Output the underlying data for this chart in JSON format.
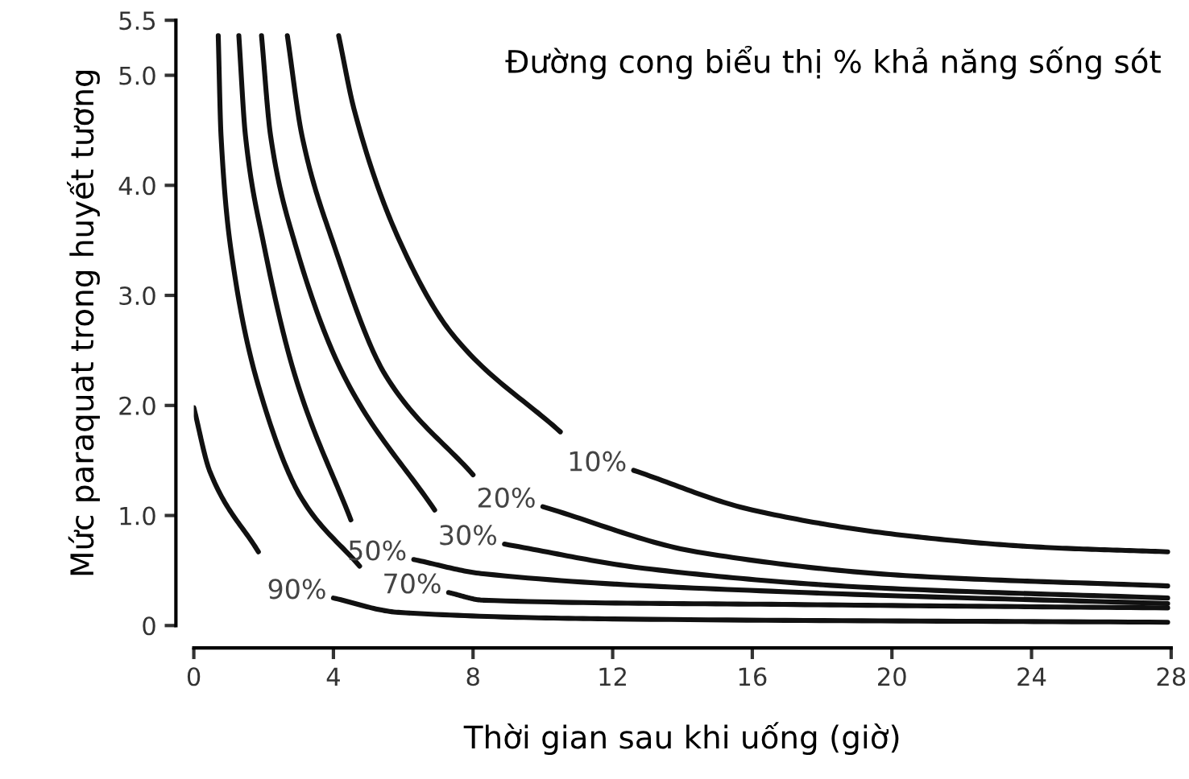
{
  "chart_data": {
    "type": "line",
    "xlabel": "Thời gian sau khi uống (giờ)",
    "ylabel": "Mức paraquat trong huyết tương",
    "xlim": [
      0,
      28
    ],
    "xticks": [
      0,
      4,
      8,
      12,
      16,
      20,
      24,
      28
    ],
    "ylim": [
      0,
      5.5
    ],
    "yticks": [
      {
        "value": 0,
        "label": "0"
      },
      {
        "value": 1,
        "label": "1.0"
      },
      {
        "value": 2,
        "label": "2.0"
      },
      {
        "value": 3,
        "label": "3.0"
      },
      {
        "value": 4,
        "label": "4.0"
      },
      {
        "value": 5,
        "label": "5.0"
      },
      {
        "value": 5.5,
        "label": "5.5"
      }
    ],
    "grid": false,
    "marker": "none",
    "line_style": "solid",
    "series": [
      {
        "name": "10%",
        "color": "#111111",
        "x": [
          4.15,
          4.6,
          5.86,
          7.4,
          10.5,
          11.5,
          12.6,
          16,
          20.6,
          24.4,
          27.9
        ],
        "values": [
          5.36,
          4.68,
          3.52,
          2.65,
          1.76,
          null,
          1.41,
          1.05,
          0.81,
          0.71,
          0.67
        ]
      },
      {
        "name": "20%",
        "color": "#111111",
        "x": [
          2.68,
          3.1,
          4.0,
          5.5,
          8.0,
          9.0,
          10.0,
          14.4,
          20.6,
          27.9
        ],
        "values": [
          5.36,
          4.45,
          3.47,
          2.27,
          1.37,
          null,
          1.08,
          0.67,
          0.45,
          0.36
        ]
      },
      {
        "name": "30%",
        "color": "#111111",
        "x": [
          1.94,
          2.2,
          2.9,
          4.3,
          6.9,
          8.0,
          8.9,
          12.9,
          19.1,
          27.9
        ],
        "values": [
          5.36,
          4.45,
          3.47,
          2.27,
          1.05,
          null,
          0.74,
          0.52,
          0.35,
          0.25
        ]
      },
      {
        "name": "50%",
        "color": "#111111",
        "x": [
          1.29,
          1.48,
          2.0,
          2.9,
          4.5,
          5.5,
          6.3,
          8.3,
          17.5,
          27.9
        ],
        "values": [
          5.36,
          4.45,
          3.47,
          2.27,
          0.96,
          null,
          0.6,
          0.47,
          0.3,
          0.2
        ]
      },
      {
        "name": "70%",
        "color": "#111111",
        "x": [
          0.7,
          0.78,
          1.15,
          2.0,
          3.1,
          4.75,
          6.0,
          7.3,
          8.3,
          17.5,
          27.9
        ],
        "values": [
          5.36,
          4.45,
          3.23,
          2.02,
          1.15,
          0.54,
          null,
          0.3,
          0.23,
          0.19,
          0.16
        ]
      },
      {
        "name": "90%",
        "color": "#111111",
        "x": [
          0,
          0.46,
          1.85,
          3.0,
          4.0,
          5.86,
          12,
          27.9
        ],
        "values": [
          1.98,
          1.4,
          0.67,
          null,
          0.25,
          0.12,
          0.06,
          0.03
        ]
      }
    ],
    "annotations": [
      "Đường cong biểu thị % khả năng sống sót"
    ]
  }
}
